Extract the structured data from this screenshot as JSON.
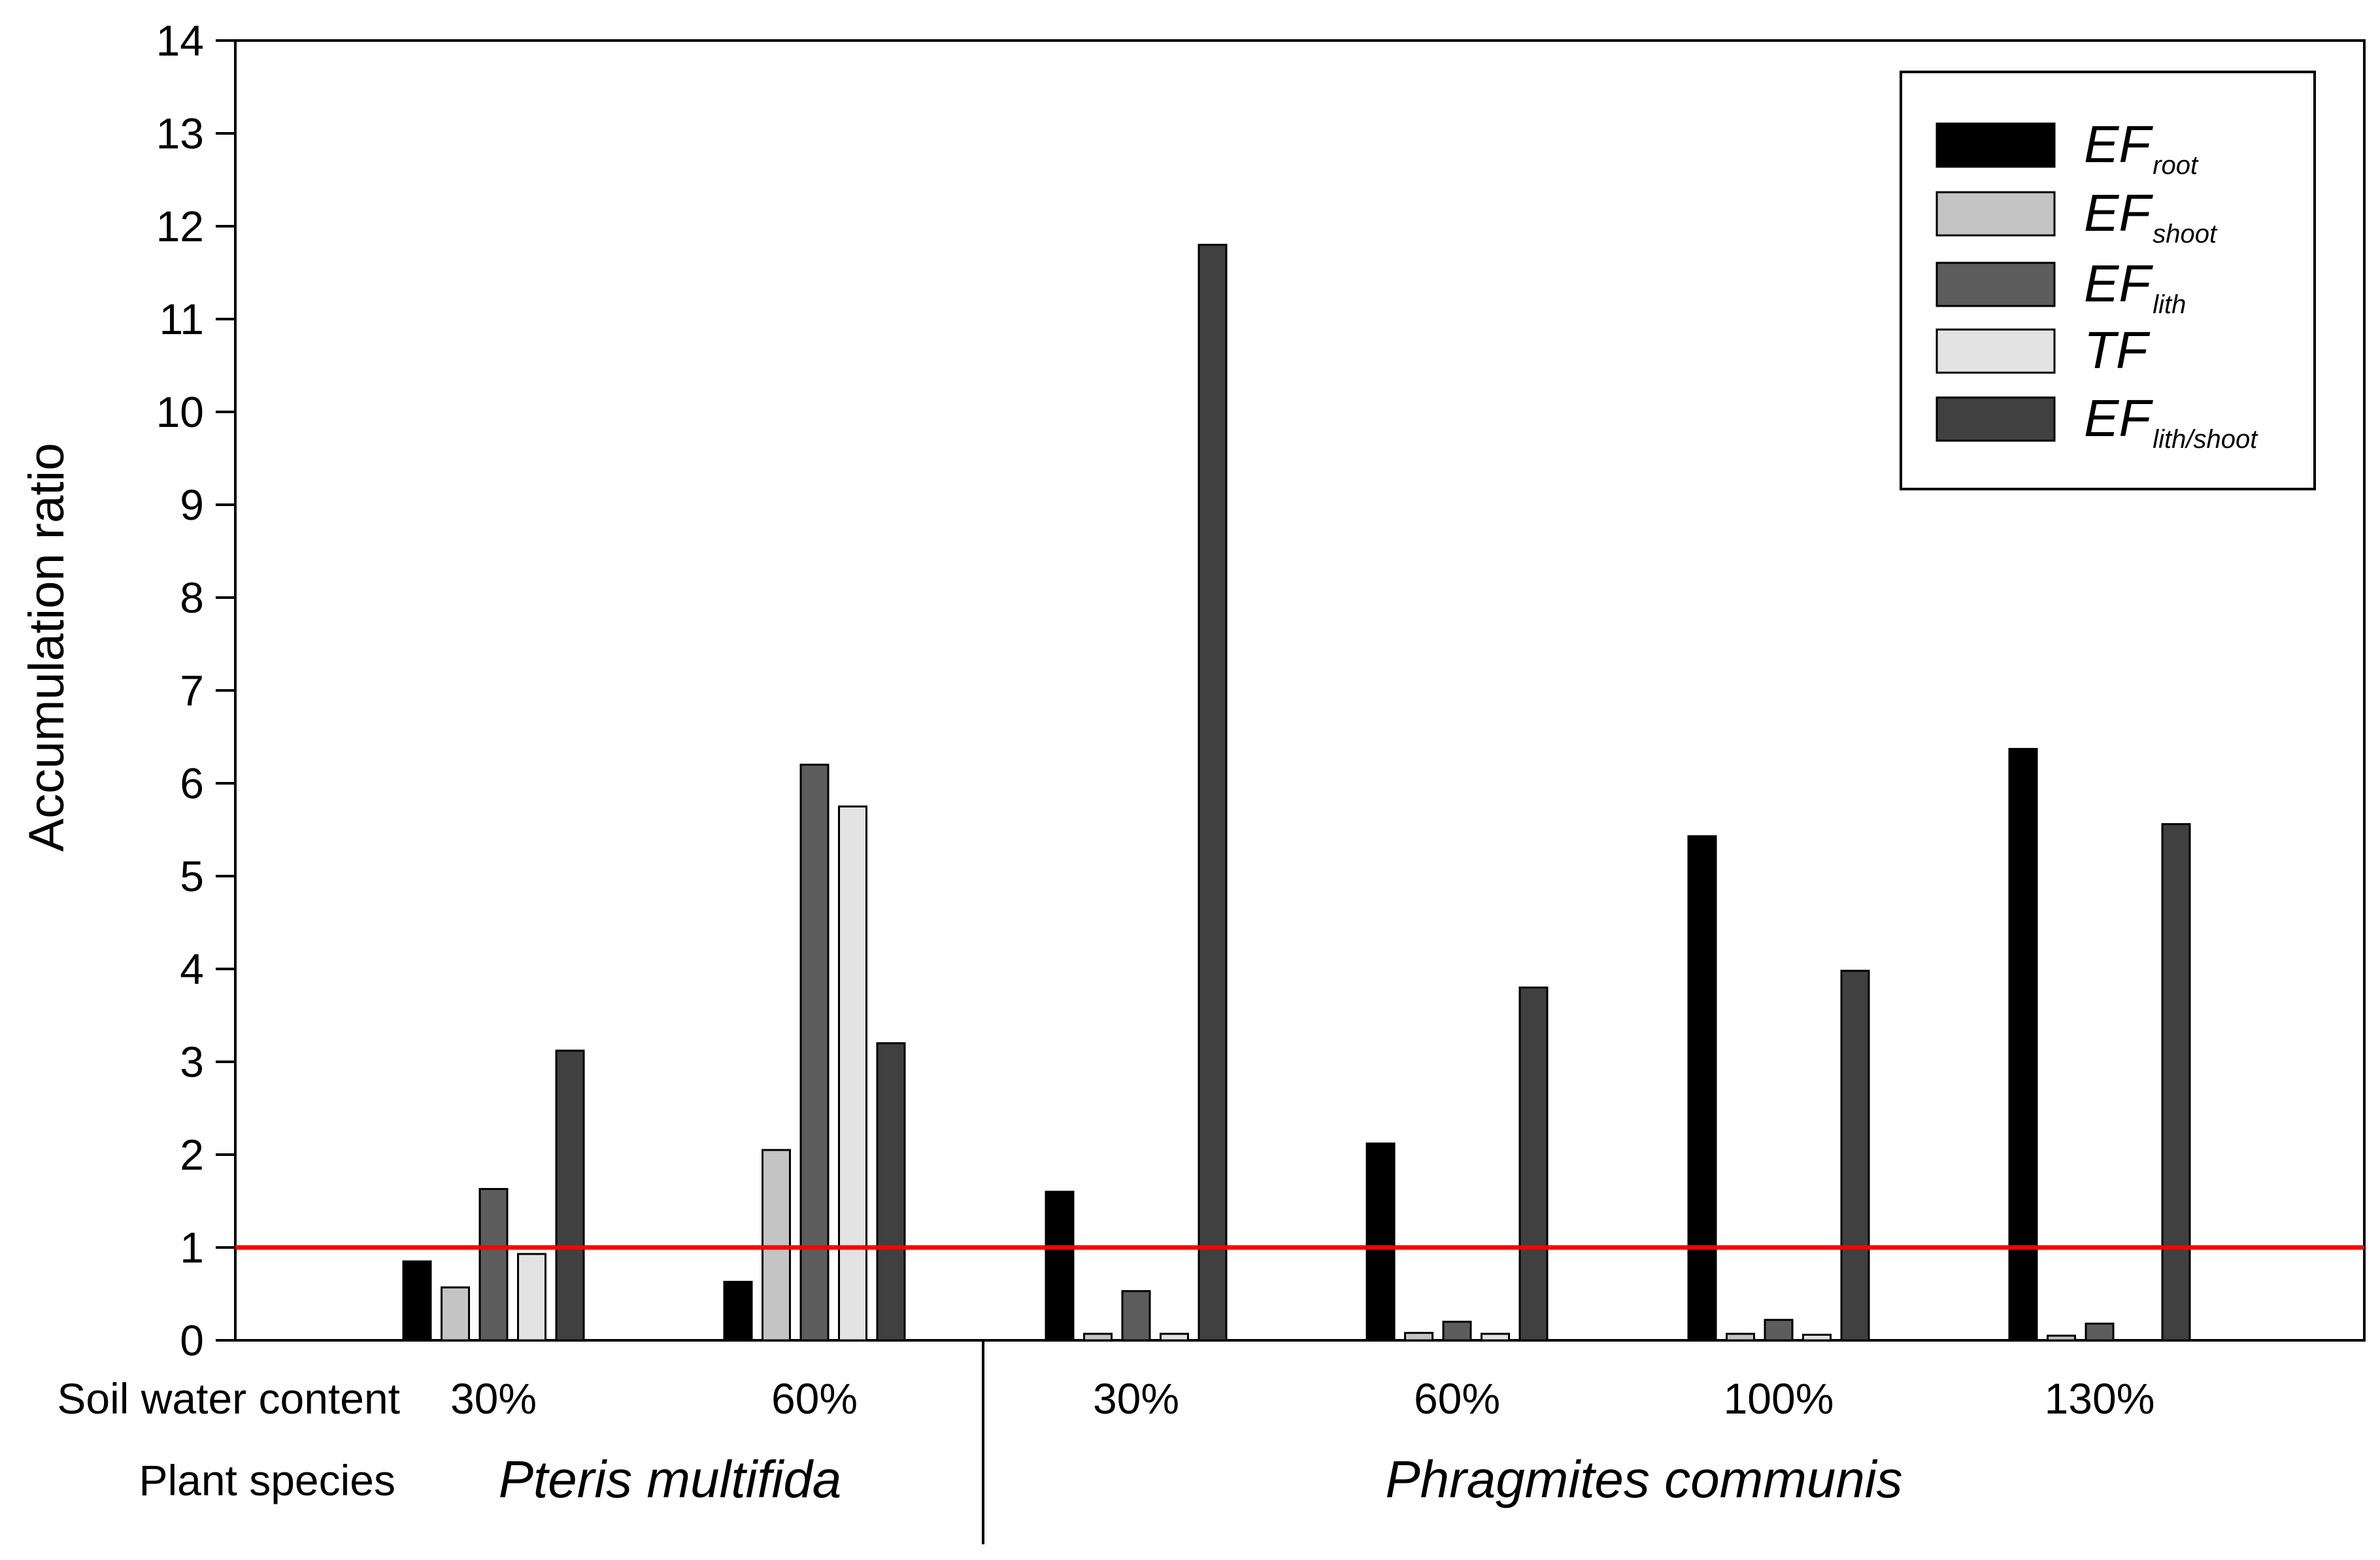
{
  "chart_data": {
    "type": "bar",
    "title": "",
    "xlabel": "",
    "ylabel": "Accumulation ratio",
    "ylim": [
      0,
      14
    ],
    "yticks": [
      0,
      1,
      2,
      3,
      4,
      5,
      6,
      7,
      8,
      9,
      10,
      11,
      12,
      13,
      14
    ],
    "row_labels": {
      "soil_water": "Soil water content",
      "species": "Plant species"
    },
    "groups": [
      {
        "species": "Pteris multifida",
        "categories": [
          "30%",
          "60%"
        ]
      },
      {
        "species": "Phragmites communis",
        "categories": [
          "30%",
          "60%",
          "100%",
          "130%"
        ]
      }
    ],
    "categories": [
      "30%",
      "60%",
      "30%",
      "60%",
      "100%",
      "130%"
    ],
    "series": [
      {
        "name": "EF",
        "sub": "root",
        "color": "#000000",
        "values": [
          0.85,
          0.63,
          1.6,
          2.12,
          5.43,
          6.37
        ]
      },
      {
        "name": "EF",
        "sub": "shoot",
        "color": "#c4c4c4",
        "values": [
          0.57,
          2.05,
          0.07,
          0.08,
          0.07,
          0.05
        ]
      },
      {
        "name": "EF",
        "sub": "lith",
        "color": "#5d5d5d",
        "values": [
          1.63,
          6.2,
          0.53,
          0.2,
          0.22,
          0.18
        ]
      },
      {
        "name": "TF",
        "sub": "",
        "color": "#e3e3e3",
        "values": [
          0.93,
          5.75,
          0.07,
          0.07,
          0.06,
          0.0
        ]
      },
      {
        "name": "EF",
        "sub": "lith/shoot",
        "color": "#404040",
        "values": [
          3.12,
          3.2,
          11.8,
          3.8,
          3.98,
          5.56
        ]
      }
    ],
    "reference_line": {
      "y": 1,
      "color": "#ff0000"
    },
    "legend_position": "top-right"
  }
}
